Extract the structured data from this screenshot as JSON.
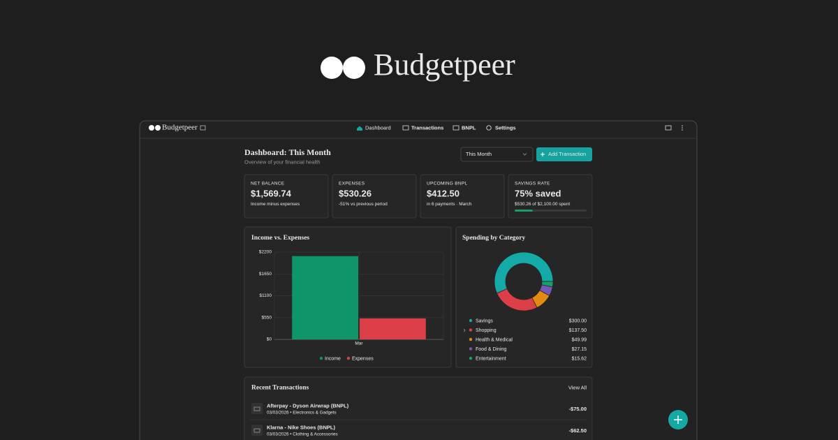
{
  "hero": {
    "brand": "Budgetpeer"
  },
  "nav": {
    "brand": "Budgetpeer",
    "items": [
      "Dashboard",
      "Transactions",
      "BNPL",
      "Settings"
    ]
  },
  "header": {
    "title": "Dashboard: This Month",
    "subtitle": "Overview of your financial health",
    "period": "This Month",
    "add_button": "Add Transaction"
  },
  "cards": [
    {
      "label": "NET BALANCE",
      "value": "$1,569.74",
      "note": "Income minus expenses"
    },
    {
      "label": "EXPENSES",
      "value": "$530.26",
      "note": "-51% vs previous period"
    },
    {
      "label": "UPCOMING BNPL",
      "value": "$412.50",
      "note": "in 6 payments · March"
    },
    {
      "label": "SAVINGS RATE",
      "value": "75% saved",
      "note": "$530.26 of $2,100.00 spent",
      "progress": 25
    }
  ],
  "chart_data": [
    {
      "type": "bar",
      "title": "Income vs. Expenses",
      "categories": [
        "Mar"
      ],
      "series": [
        {
          "name": "Income",
          "color": "#10956a",
          "values": [
            2100
          ]
        },
        {
          "name": "Expenses",
          "color": "#dc3f48",
          "values": [
            530.26
          ]
        }
      ],
      "ylim": [
        0,
        2200
      ],
      "yticks": [
        {
          "value": 0,
          "label": "$0"
        },
        {
          "value": 550,
          "label": "$550"
        },
        {
          "value": 1100,
          "label": "$1100"
        },
        {
          "value": 1650,
          "label": "$1650"
        },
        {
          "value": 2200,
          "label": "$2200"
        }
      ],
      "grid": true
    },
    {
      "type": "pie",
      "title": "Spending by Category",
      "categories": [
        "Savings",
        "Shopping",
        "Health & Medical",
        "Food & Dining",
        "Entertainment"
      ],
      "values": [
        300,
        137.5,
        49.99,
        27.15,
        15.62
      ],
      "value_labels": [
        "$300.00",
        "$137.50",
        "$49.99",
        "$27.15",
        "$15.62"
      ],
      "colors": [
        "#14aaa8",
        "#dc3f48",
        "#e38a12",
        "#7358b8",
        "#17a06a"
      ]
    }
  ],
  "transactions": {
    "title": "Recent Transactions",
    "view_all": "View All",
    "rows": [
      {
        "name": "Afterpay - Dyson Airwrap (BNPL)",
        "meta": "03/03/2026 • Electronics & Gadgets",
        "amount": "-$75.00"
      },
      {
        "name": "Klarna - Nike Shoes (BNPL)",
        "meta": "03/03/2026 • Clothing & Accessories",
        "amount": "-$62.50"
      }
    ]
  }
}
